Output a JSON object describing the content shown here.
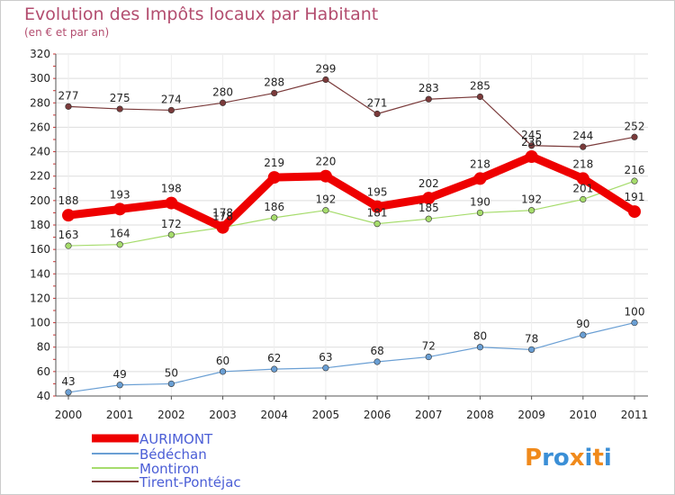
{
  "chart_data": {
    "type": "line",
    "title": "Evolution des Impôts locaux par Habitant",
    "subtitle": "(en € et par an)",
    "xlabel": "",
    "ylabel": "",
    "x": [
      "2000",
      "2001",
      "2002",
      "2003",
      "2004",
      "2005",
      "2006",
      "2007",
      "2008",
      "2009",
      "2010",
      "2011"
    ],
    "ylim": [
      40,
      320
    ],
    "yticks": [
      40,
      60,
      80,
      100,
      120,
      140,
      160,
      180,
      200,
      220,
      240,
      260,
      280,
      300,
      320
    ],
    "grid": true,
    "legend": "bottom-left",
    "series": [
      {
        "name": "AURIMONT",
        "color": "#ee0000",
        "values": [
          188,
          193,
          198,
          178,
          219,
          220,
          195,
          202,
          218,
          236,
          218,
          191
        ],
        "labels": [
          "188",
          "193",
          "198",
          "178",
          "219",
          "220",
          "195",
          "202",
          "218",
          "236",
          "218",
          "191"
        ]
      },
      {
        "name": "Bédéchan",
        "color": "#6a9fd4",
        "values": [
          43,
          49,
          50,
          60,
          62,
          63,
          68,
          72,
          80,
          78,
          90,
          100
        ],
        "labels": [
          "43",
          "49",
          "50",
          "60",
          "62",
          "63",
          "68",
          "72",
          "80",
          "78",
          "90",
          "100"
        ]
      },
      {
        "name": "Montiron",
        "color": "#a6dc6c",
        "values": [
          163,
          164,
          172,
          178,
          186,
          192,
          181,
          185,
          190,
          192,
          201,
          216
        ],
        "labels": [
          "163",
          "164",
          "172",
          "178",
          "186",
          "192",
          "181",
          "185",
          "190",
          "192",
          "201",
          "216"
        ]
      },
      {
        "name": "Tirent-Pontéjac",
        "color": "#7a3a3a",
        "values": [
          277,
          275,
          274,
          280,
          288,
          299,
          271,
          283,
          285,
          245,
          244,
          252
        ],
        "labels": [
          "277",
          "275",
          "274",
          "280",
          "288",
          "299",
          "271",
          "283",
          "285",
          "245",
          "244",
          "252"
        ]
      }
    ]
  },
  "logo": {
    "text": "Proxiti"
  }
}
